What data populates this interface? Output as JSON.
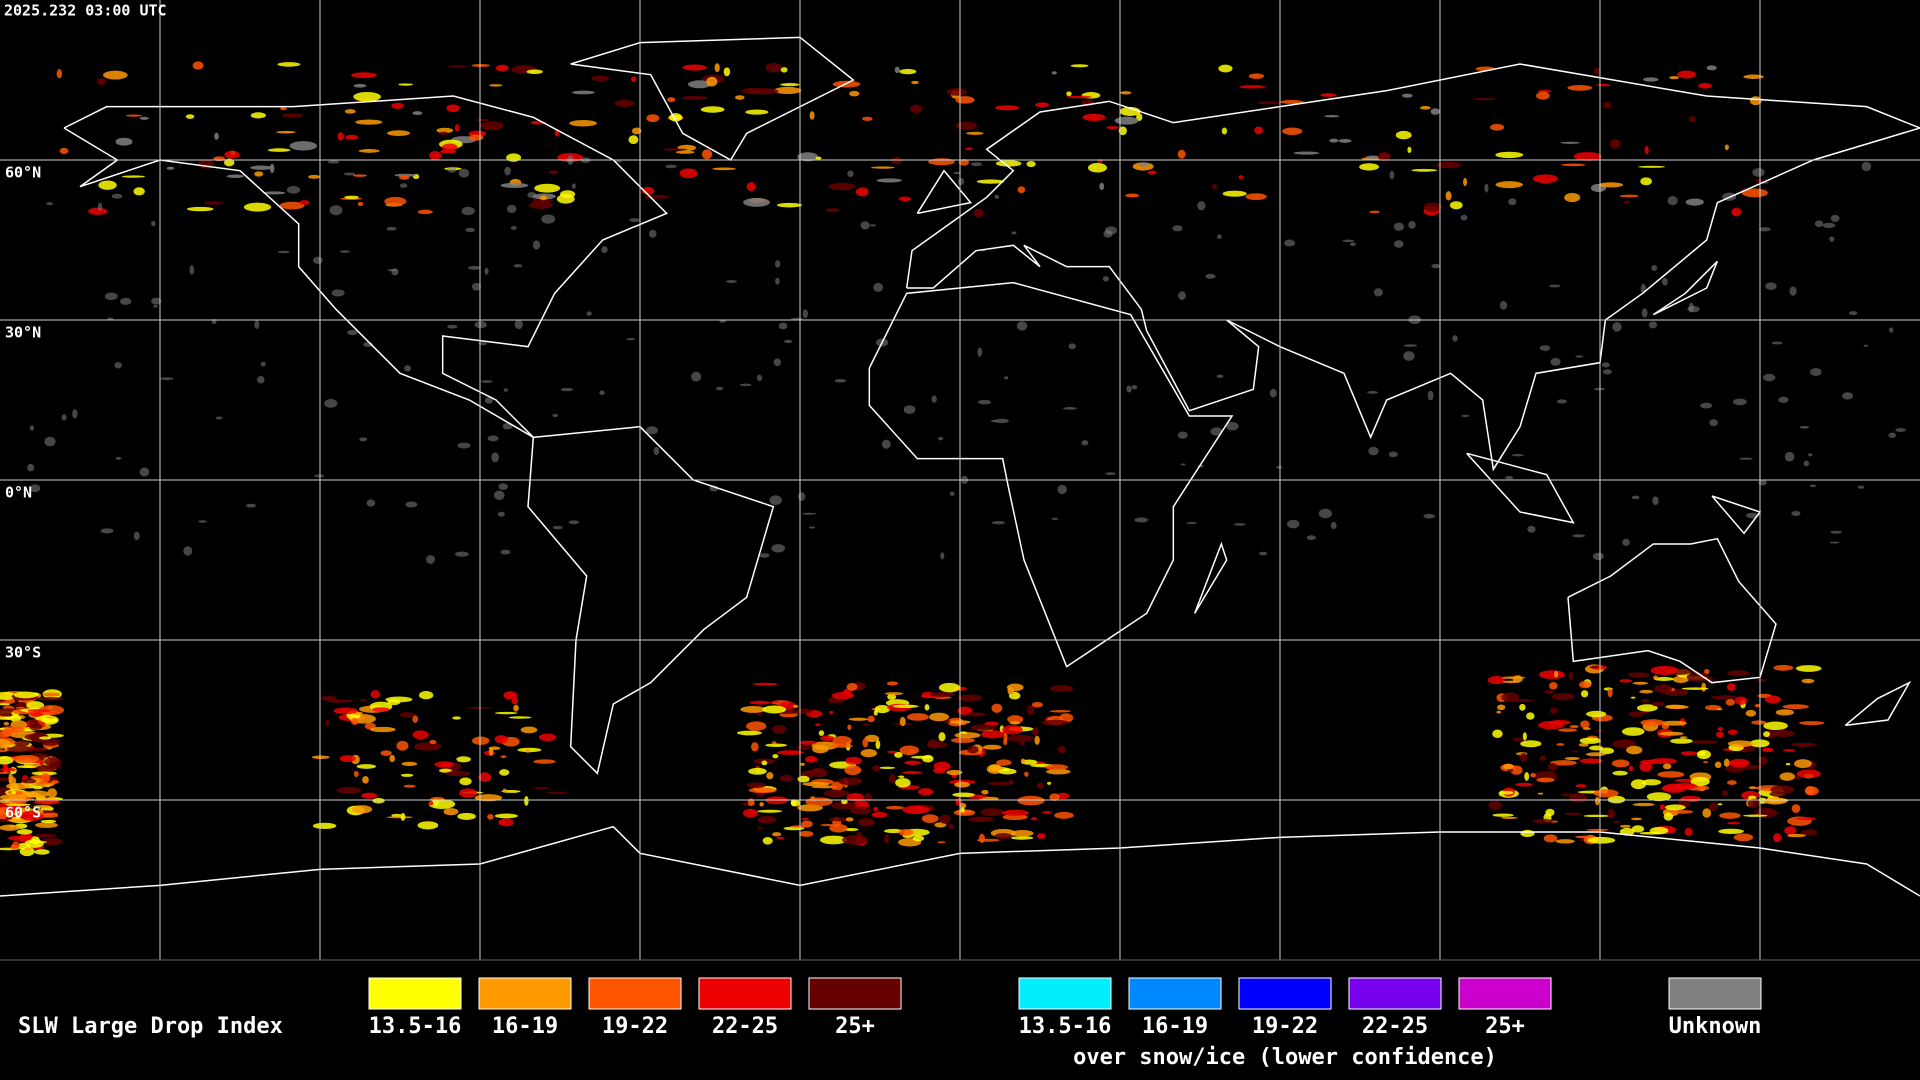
{
  "header": {
    "title": "2025.232 03:00 UTC"
  },
  "map": {
    "lat_labels": [
      "60°N",
      "30°N",
      "0°N",
      "30°S",
      "60°S"
    ]
  },
  "legend": {
    "title": "SLW Large Drop Index",
    "groups": [
      {
        "entries": [
          {
            "label": "13.5-16",
            "color": "#ffff00"
          },
          {
            "label": "16-19",
            "color": "#ff9900"
          },
          {
            "label": "19-22",
            "color": "#ff5500"
          },
          {
            "label": "22-25",
            "color": "#ee0000"
          },
          {
            "label": "25+",
            "color": "#660000"
          }
        ]
      },
      {
        "entries": [
          {
            "label": "13.5-16",
            "color": "#00eeff"
          },
          {
            "label": "16-19",
            "color": "#0088ff"
          },
          {
            "label": "19-22",
            "color": "#0000ff"
          },
          {
            "label": "22-25",
            "color": "#7700ee"
          },
          {
            "label": "25+",
            "color": "#cc00cc"
          }
        ],
        "caption": "over snow/ice (lower confidence)"
      },
      {
        "entries": [
          {
            "label": "Unknown",
            "color": "#808080"
          }
        ]
      }
    ]
  }
}
